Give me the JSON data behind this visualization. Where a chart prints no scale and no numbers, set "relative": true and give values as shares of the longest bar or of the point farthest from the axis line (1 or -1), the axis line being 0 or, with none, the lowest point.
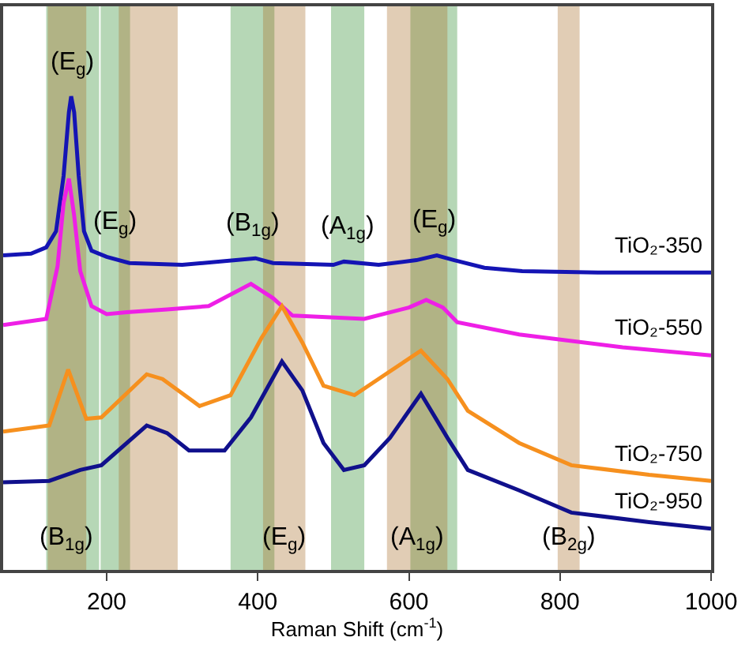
{
  "chart_data": {
    "type": "line",
    "relative": true,
    "xlabel": "Raman Shift (cm$^{-1}$)",
    "xlim": [
      63,
      1000
    ],
    "xticks": [
      200,
      400,
      600,
      800,
      1000
    ],
    "grid": false,
    "legend": false,
    "marker": "none",
    "line_style": "solid",
    "series": [
      {
        "name": "TiO₂-350",
        "color": "#1414b4",
        "x": [
          63,
          100,
          120,
          133,
          143,
          150,
          153,
          157,
          163,
          170,
          180,
          200,
          230,
          300,
          397,
          420,
          500,
          514,
          560,
          610,
          637,
          660,
          700,
          750,
          850,
          1000
        ],
        "values": [
          0.664,
          0.668,
          0.681,
          0.715,
          0.832,
          0.966,
          1,
          0.966,
          0.832,
          0.715,
          0.674,
          0.661,
          0.648,
          0.644,
          0.658,
          0.648,
          0.644,
          0.651,
          0.644,
          0.654,
          0.664,
          0.654,
          0.638,
          0.631,
          0.628,
          0.628
        ]
      },
      {
        "name": "TiO₂-550",
        "color": "#ee1fe6",
        "x": [
          63,
          120,
          135,
          143,
          150,
          157,
          165,
          180,
          200,
          227,
          280,
          335,
          391,
          420,
          446,
          541,
          600,
          623,
          645,
          664,
          746,
          883,
          1000
        ],
        "values": [
          0.517,
          0.53,
          0.641,
          0.775,
          0.826,
          0.748,
          0.631,
          0.557,
          0.54,
          0.544,
          0.55,
          0.557,
          0.604,
          0.574,
          0.537,
          0.53,
          0.554,
          0.57,
          0.554,
          0.523,
          0.497,
          0.47,
          0.453
        ]
      },
      {
        "name": "TiO₂-750",
        "color": "#f6901e",
        "x": [
          63,
          124,
          149,
          173,
          193,
          253,
          274,
          323,
          364,
          405,
          432,
          459,
          487,
          528,
          569,
          616,
          651,
          678,
          746,
          815,
          918,
          1000
        ],
        "values": [
          0.292,
          0.305,
          0.423,
          0.319,
          0.322,
          0.413,
          0.403,
          0.346,
          0.369,
          0.49,
          0.557,
          0.48,
          0.389,
          0.369,
          0.413,
          0.463,
          0.403,
          0.336,
          0.268,
          0.221,
          0.201,
          0.188
        ]
      },
      {
        "name": "TiO₂-950",
        "color": "#10108c",
        "x": [
          63,
          124,
          165,
          193,
          253,
          280,
          309,
          356,
          391,
          432,
          459,
          487,
          514,
          541,
          575,
          616,
          651,
          678,
          746,
          815,
          918,
          1000
        ],
        "values": [
          0.185,
          0.188,
          0.211,
          0.221,
          0.305,
          0.289,
          0.252,
          0.252,
          0.322,
          0.44,
          0.379,
          0.268,
          0.211,
          0.221,
          0.279,
          0.372,
          0.279,
          0.211,
          0.168,
          0.121,
          0.101,
          0.087
        ]
      }
    ],
    "bands": [
      {
        "axis": "x",
        "from": 120,
        "to": 190,
        "color": "#2e8b2e",
        "label": "(E$_{g}$)"
      },
      {
        "axis": "x",
        "from": 192,
        "to": 231,
        "color": "#2e8b2e",
        "label": "(E$_{g}$)"
      },
      {
        "axis": "x",
        "from": 364,
        "to": 422,
        "color": "#2e8b2e",
        "label": "(B$_{1g}$)"
      },
      {
        "axis": "x",
        "from": 497,
        "to": 541,
        "color": "#2e8b2e",
        "label": "(A$_{1g}$)"
      },
      {
        "axis": "x",
        "from": 602,
        "to": 664,
        "color": "#2e8b2e",
        "label": "(E$_{g}$)"
      },
      {
        "axis": "x",
        "from": 122,
        "to": 173,
        "color": "#a8702a",
        "label": "(B$_{1g}$)"
      },
      {
        "axis": "x",
        "from": 216,
        "to": 294,
        "color": "#a8702a"
      },
      {
        "axis": "x",
        "from": 407,
        "to": 463,
        "color": "#a8702a",
        "label": "(E$_{g}$)"
      },
      {
        "axis": "x",
        "from": 571,
        "to": 651,
        "color": "#a8702a",
        "label": "(A$_{1g}$)"
      },
      {
        "axis": "x",
        "from": 797,
        "to": 826,
        "color": "#a8702a",
        "label": "(B$_{2g}$)"
      }
    ]
  }
}
